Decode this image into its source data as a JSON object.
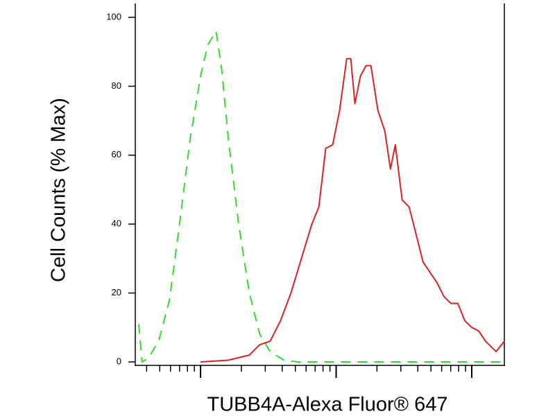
{
  "chart_data": {
    "type": "line",
    "x_label": "TUBB4A-Alexa Fluor® 647",
    "y_label": "Cell Counts (% Max)",
    "xscale": "log",
    "xlim": [
      35,
      17400
    ],
    "xticks": [
      100,
      1000,
      10000
    ],
    "minor_ticks": true,
    "ylim": [
      0,
      100
    ],
    "yticks": [
      0,
      20,
      40,
      60,
      80,
      100
    ],
    "series": [
      {
        "color": "#2fdc2f",
        "dashed": true,
        "x": [
          35,
          37,
          41,
          49,
          59,
          70,
          84,
          100,
          113,
          130,
          143,
          160,
          191,
          229,
          273,
          326,
          412,
          522,
          1200,
          3900,
          17400
        ],
        "values": [
          11,
          0,
          1,
          6,
          18,
          40,
          65,
          83,
          92,
          96,
          85,
          65,
          40,
          20,
          8,
          3,
          0.5,
          0,
          0,
          0,
          0
        ]
      },
      {
        "color": "#dd2020",
        "dashed": false,
        "x": [
          100,
          160,
          229,
          273,
          326,
          389,
          464,
          554,
          662,
          745,
          838,
          942,
          1060,
          1195,
          1282,
          1375,
          1511,
          1662,
          1804,
          2031,
          2285,
          2513,
          2729,
          3069,
          3451,
          3890,
          4375,
          4920,
          5540,
          6235,
          7015,
          7890,
          8880,
          10000,
          11250,
          12660,
          15100,
          17400
        ],
        "values": [
          0,
          0.5,
          2,
          5,
          6,
          12,
          20,
          30,
          40,
          45,
          62,
          63,
          73,
          88,
          88,
          75,
          83,
          86,
          86,
          73,
          67,
          56,
          63,
          47,
          45,
          37,
          29,
          26,
          23,
          19,
          17,
          17,
          12,
          10,
          9,
          6,
          3,
          6
        ]
      }
    ]
  }
}
